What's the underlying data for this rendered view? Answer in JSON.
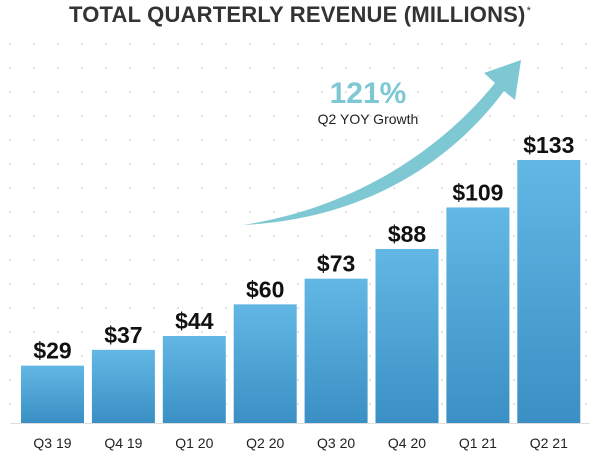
{
  "title": "TOTAL QUARTERLY REVENUE (MILLIONS)",
  "title_footnote_mark": "*",
  "growth": {
    "value": "121%",
    "caption": "Q2 YOY Growth"
  },
  "colors": {
    "bar_top": "#62b7e4",
    "bar_bottom": "#3a90c4",
    "arrow": "#7ec8d3",
    "growth_value": "#7ec8d3",
    "text_dark": "#111111",
    "axis_line": "#dddddd",
    "dots": "#e6e6e6"
  },
  "chart_data": {
    "type": "bar",
    "title": "TOTAL QUARTERLY REVENUE (MILLIONS)",
    "categories": [
      "Q3 19",
      "Q4 19",
      "Q1 20",
      "Q2 20",
      "Q3 20",
      "Q4 20",
      "Q1 21",
      "Q2 21"
    ],
    "values": [
      29,
      37,
      44,
      60,
      73,
      88,
      109,
      133
    ],
    "value_labels": [
      "$29",
      "$37",
      "$44",
      "$60",
      "$73",
      "$88",
      "$109",
      "$133"
    ],
    "xlabel": "",
    "ylabel": "",
    "ylim": [
      0,
      133
    ],
    "grid": false,
    "legend": "none",
    "annotations": [
      "121%",
      "Q2 YOY Growth"
    ]
  }
}
